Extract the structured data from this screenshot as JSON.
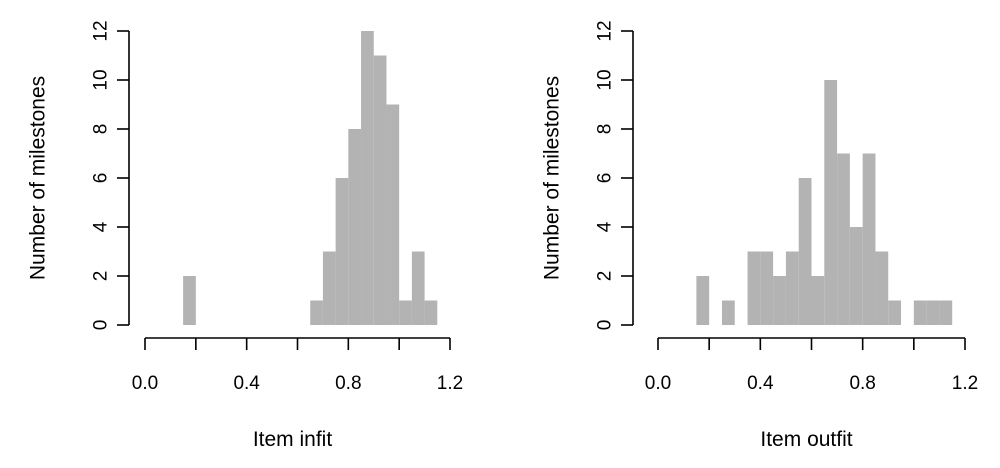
{
  "chart_data": [
    {
      "type": "bar",
      "xlabel": "Item infit",
      "ylabel": "Number of milestones",
      "xlim": [
        0.0,
        1.2
      ],
      "ylim": [
        0,
        12
      ],
      "xticks": [
        "0.0",
        "0.4",
        "0.8",
        "1.2"
      ],
      "yticks": [
        "0",
        "2",
        "4",
        "6",
        "8",
        "10",
        "12"
      ],
      "bin_width": 0.05,
      "bins": [
        {
          "start": 0.15,
          "end": 0.2,
          "count": 2
        },
        {
          "start": 0.65,
          "end": 0.7,
          "count": 1
        },
        {
          "start": 0.7,
          "end": 0.75,
          "count": 3
        },
        {
          "start": 0.75,
          "end": 0.8,
          "count": 6
        },
        {
          "start": 0.8,
          "end": 0.85,
          "count": 8
        },
        {
          "start": 0.85,
          "end": 0.9,
          "count": 12
        },
        {
          "start": 0.9,
          "end": 0.95,
          "count": 11
        },
        {
          "start": 0.95,
          "end": 1.0,
          "count": 9
        },
        {
          "start": 1.0,
          "end": 1.05,
          "count": 1
        },
        {
          "start": 1.05,
          "end": 1.1,
          "count": 3
        },
        {
          "start": 1.1,
          "end": 1.15,
          "count": 1
        }
      ],
      "bar_color": "#b3b3b3",
      "grid": false
    },
    {
      "type": "bar",
      "xlabel": "Item outfit",
      "ylabel": "Number of milestones",
      "xlim": [
        0.0,
        1.2
      ],
      "ylim": [
        0,
        12
      ],
      "xticks": [
        "0.0",
        "0.4",
        "0.8",
        "1.2"
      ],
      "yticks": [
        "0",
        "2",
        "4",
        "6",
        "8",
        "10",
        "12"
      ],
      "bin_width": 0.05,
      "bins": [
        {
          "start": 0.15,
          "end": 0.2,
          "count": 2
        },
        {
          "start": 0.25,
          "end": 0.3,
          "count": 1
        },
        {
          "start": 0.35,
          "end": 0.4,
          "count": 3
        },
        {
          "start": 0.4,
          "end": 0.45,
          "count": 3
        },
        {
          "start": 0.45,
          "end": 0.5,
          "count": 2
        },
        {
          "start": 0.5,
          "end": 0.55,
          "count": 3
        },
        {
          "start": 0.55,
          "end": 0.6,
          "count": 6
        },
        {
          "start": 0.6,
          "end": 0.65,
          "count": 2
        },
        {
          "start": 0.65,
          "end": 0.7,
          "count": 10
        },
        {
          "start": 0.7,
          "end": 0.75,
          "count": 7
        },
        {
          "start": 0.75,
          "end": 0.8,
          "count": 4
        },
        {
          "start": 0.8,
          "end": 0.85,
          "count": 7
        },
        {
          "start": 0.85,
          "end": 0.9,
          "count": 3
        },
        {
          "start": 0.9,
          "end": 0.95,
          "count": 1
        },
        {
          "start": 1.0,
          "end": 1.05,
          "count": 1
        },
        {
          "start": 1.05,
          "end": 1.1,
          "count": 1
        },
        {
          "start": 1.1,
          "end": 1.15,
          "count": 1
        }
      ],
      "bar_color": "#b3b3b3",
      "grid": false
    }
  ]
}
